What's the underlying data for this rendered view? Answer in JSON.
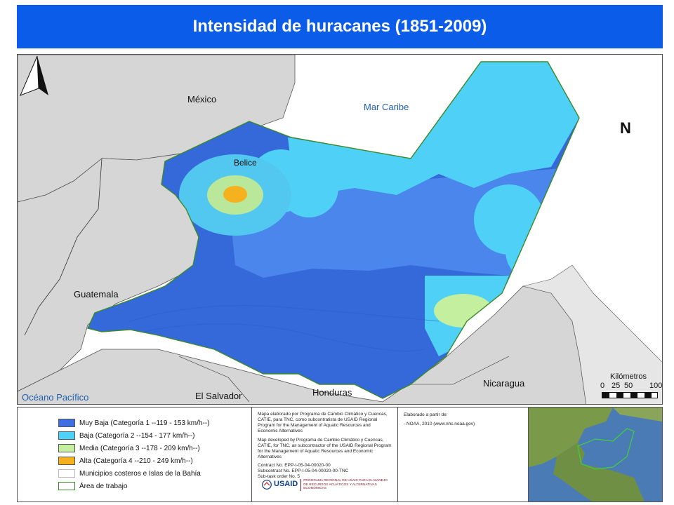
{
  "title": "Intensidad de huracanes (1851-2009)",
  "map": {
    "labels": {
      "mexico": "México",
      "belice": "Belice",
      "mar_caribe": "Mar Caribe",
      "guatemala": "Guatemala",
      "oceano": "Océano Pacífico",
      "el_salvador": "El Salvador",
      "honduras": "Honduras",
      "nicaragua": "Nicaragua"
    },
    "north": "N",
    "scale": {
      "title": "Kilómetros",
      "ticks": [
        "0",
        "25",
        "50",
        "100"
      ]
    },
    "colors": {
      "muy_baja": "#3f6fe0",
      "baja": "#4fd1f7",
      "media": "#b9e89a",
      "alta": "#f5b32a",
      "land": "#d6d6d6",
      "sea": "#ffffff"
    }
  },
  "legend": {
    "items": [
      {
        "label": "Muy Baja (Categoría 1 --119 - 153 km/h--)",
        "color": "#3f6fe0"
      },
      {
        "label": "Baja (Categoría 2 --154 - 177 km/h--)",
        "color": "#4fd1f7"
      },
      {
        "label": "Media (Categoría 3 --178 - 209 km/h--)",
        "color": "#c3ef9f"
      },
      {
        "label": "Alta (Categoría 4 --210 - 249 km/h--)",
        "color": "#f6b21e"
      },
      {
        "label": "Municipios costeros e Islas de la Bahía",
        "color": "#ffffff"
      },
      {
        "label": "Área de trabajo",
        "color": "#ffffff"
      }
    ]
  },
  "credits": {
    "es": "Mapa elaborado por Programa de Cambio Climático y Cuencas, CATIE, para TNC, como subcontratista de USAID Regional Program for the Management of Aquatic Resources and Economic Alternatives",
    "en": "Map developed by Programa de Cambio Climático y Cuencas, CATIE, for TNC, as subcontractor of the USAID Regional Program for the Management of Aquatic Resources and Economic Alternatives",
    "contract": "Contract No. EPP-I-05-04-00020-00",
    "subcontract": "Subcontract No. EPP-I-05-04-00020-00-TNC",
    "subtask": "Sub-task order No. 5",
    "usaid": "USAID",
    "usaid_tag": "PROGRAMA REGIONAL DE USAID PARA EL MANEJO DE RECURSOS ACUÁTICOS Y ALTERNATIVAS ECONÓMICAS"
  },
  "sources": {
    "heading": "Elaborado a partir de:",
    "item": "- NOAA, 2010 (www.nhc.noaa.gov)"
  }
}
